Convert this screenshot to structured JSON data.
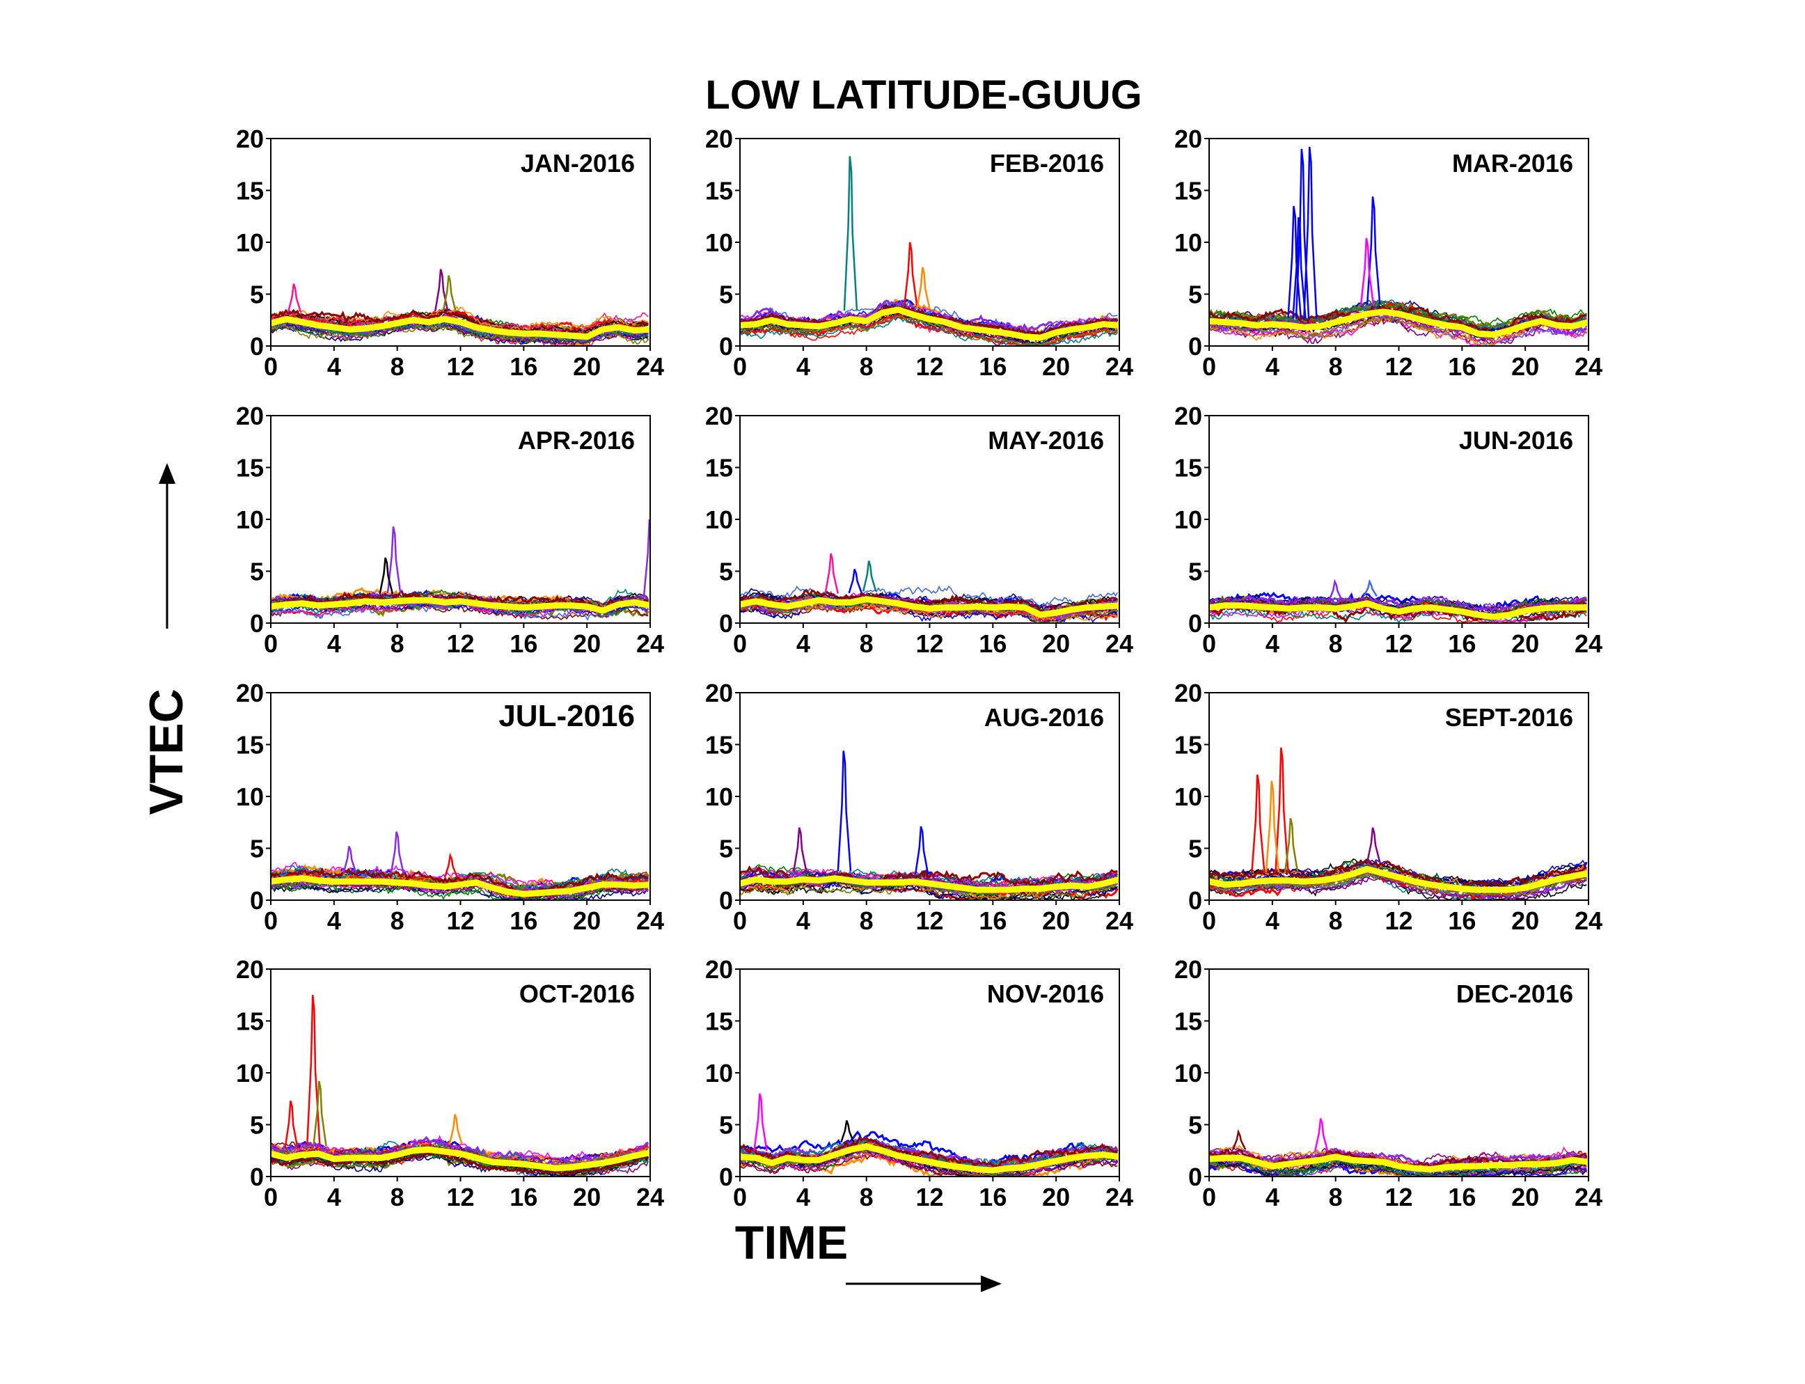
{
  "chart_data": {
    "type": "line",
    "title": "LOW LATITUDE-GUUG",
    "xlabel": "TIME",
    "ylabel": "VTEC",
    "xlim": [
      0,
      24
    ],
    "ylim": [
      0,
      20
    ],
    "xticks": [
      0,
      4,
      8,
      12,
      16,
      20,
      24
    ],
    "yticks": [
      0,
      5,
      10,
      15,
      20
    ],
    "grid": false,
    "legend": "none",
    "layout": "4 rows x 3 columns",
    "mean_line_color": "#FFFF00",
    "trace_colors": [
      "#0000FF",
      "#FF0000",
      "#000000",
      "#00008B",
      "#FF1493",
      "#FF8C00",
      "#8A2BE2",
      "#008000",
      "#008080",
      "#800080",
      "#808000",
      "#8B0000",
      "#FF00FF",
      "#4169E1"
    ],
    "mean_x_hours": [
      0,
      1,
      2,
      3,
      4,
      5,
      6,
      7,
      8,
      9,
      10,
      11,
      12,
      13,
      14,
      15,
      16,
      17,
      18,
      19,
      20,
      21,
      22,
      23,
      24
    ],
    "panels": [
      {
        "label": "JAN-2016",
        "mean": [
          2.2,
          2.6,
          2.3,
          2.0,
          1.8,
          1.6,
          1.7,
          1.9,
          2.2,
          2.5,
          2.3,
          2.6,
          2.3,
          1.8,
          1.5,
          1.3,
          1.2,
          1.2,
          1.1,
          1.0,
          0.9,
          1.6,
          1.8,
          1.5,
          1.6
        ],
        "spikes": [
          {
            "x": 10.8,
            "y": 7.4,
            "color": "#800080"
          },
          {
            "x": 11.3,
            "y": 6.8,
            "color": "#808000"
          },
          {
            "x": 1.5,
            "y": 6.0,
            "color": "#FF1493"
          }
        ]
      },
      {
        "label": "FEB-2016",
        "mean": [
          2.0,
          2.1,
          2.5,
          2.1,
          2.0,
          1.9,
          2.2,
          2.6,
          2.4,
          3.2,
          3.5,
          3.0,
          2.6,
          2.3,
          1.8,
          1.6,
          1.4,
          1.2,
          0.9,
          0.8,
          1.3,
          1.6,
          1.8,
          2.1,
          2.0
        ],
        "spikes": [
          {
            "x": 7.0,
            "y": 18.3,
            "color": "#008080"
          },
          {
            "x": 10.8,
            "y": 10.0,
            "color": "#FF0000"
          },
          {
            "x": 11.6,
            "y": 7.6,
            "color": "#FF8C00"
          }
        ]
      },
      {
        "label": "MAR-2016",
        "mean": [
          2.4,
          2.3,
          2.2,
          2.0,
          2.1,
          2.0,
          1.8,
          1.9,
          2.3,
          2.7,
          3.1,
          3.3,
          3.1,
          2.7,
          2.3,
          2.0,
          1.8,
          1.2,
          1.1,
          1.5,
          2.0,
          2.4,
          2.0,
          1.9,
          2.3
        ],
        "spikes": [
          {
            "x": 5.4,
            "y": 13.5,
            "color": "#0000FF"
          },
          {
            "x": 5.7,
            "y": 12.4,
            "color": "#0000FF"
          },
          {
            "x": 5.9,
            "y": 19.0,
            "color": "#0000FF"
          },
          {
            "x": 6.4,
            "y": 19.2,
            "color": "#0000FF"
          },
          {
            "x": 10.4,
            "y": 14.4,
            "color": "#0000FF"
          },
          {
            "x": 10.0,
            "y": 10.4,
            "color": "#FF00FF"
          }
        ]
      },
      {
        "label": "APR-2016",
        "mean": [
          1.6,
          1.8,
          1.9,
          1.7,
          1.8,
          1.9,
          2.1,
          2.0,
          2.1,
          2.2,
          2.2,
          2.0,
          2.1,
          1.9,
          1.7,
          1.6,
          1.5,
          1.6,
          1.7,
          1.7,
          1.6,
          1.2,
          1.8,
          2.0,
          1.7
        ],
        "spikes": [
          {
            "x": 7.8,
            "y": 9.3,
            "color": "#8A2BE2"
          },
          {
            "x": 24.0,
            "y": 10.0,
            "color": "#8A2BE2"
          },
          {
            "x": 7.3,
            "y": 6.3,
            "color": "#000000"
          }
        ]
      },
      {
        "label": "MAY-2016",
        "mean": [
          1.8,
          2.1,
          1.8,
          1.6,
          1.9,
          2.2,
          2.0,
          2.0,
          2.3,
          2.1,
          1.9,
          1.6,
          1.4,
          1.5,
          1.5,
          1.6,
          1.5,
          1.6,
          1.5,
          0.8,
          1.0,
          1.3,
          1.5,
          1.6,
          1.7
        ],
        "spikes": [
          {
            "x": 5.8,
            "y": 6.7,
            "color": "#FF1493"
          },
          {
            "x": 7.3,
            "y": 5.2,
            "color": "#0000FF"
          },
          {
            "x": 8.2,
            "y": 6.0,
            "color": "#008080"
          }
        ]
      },
      {
        "label": "JUN-2016",
        "mean": [
          1.5,
          1.7,
          1.7,
          1.6,
          1.5,
          1.4,
          1.5,
          1.5,
          1.4,
          1.6,
          1.9,
          1.4,
          1.1,
          1.4,
          1.5,
          1.3,
          1.1,
          0.8,
          0.6,
          0.8,
          1.2,
          1.4,
          1.5,
          1.5,
          1.5
        ],
        "spikes": [
          {
            "x": 8.0,
            "y": 4.0,
            "color": "#8A2BE2"
          },
          {
            "x": 10.2,
            "y": 4.0,
            "color": "#4169E1"
          }
        ]
      },
      {
        "label": "JUL-2016",
        "mean": [
          1.8,
          2.0,
          2.1,
          1.9,
          1.8,
          1.8,
          1.8,
          1.8,
          1.7,
          1.6,
          1.4,
          1.3,
          1.5,
          1.7,
          1.2,
          0.8,
          0.6,
          0.7,
          0.8,
          0.9,
          1.2,
          1.5,
          1.5,
          1.4,
          1.5
        ],
        "spikes": [
          {
            "x": 8.0,
            "y": 6.6,
            "color": "#8A2BE2"
          },
          {
            "x": 5.0,
            "y": 5.2,
            "color": "#8A2BE2"
          },
          {
            "x": 11.4,
            "y": 4.3,
            "color": "#FF0000"
          }
        ]
      },
      {
        "label": "AUG-2016",
        "mean": [
          1.6,
          2.0,
          1.8,
          1.8,
          2.0,
          1.9,
          2.1,
          1.9,
          1.7,
          1.7,
          1.7,
          1.8,
          1.6,
          1.4,
          1.2,
          1.0,
          1.0,
          1.0,
          1.1,
          1.1,
          1.3,
          1.4,
          1.3,
          1.6,
          2.0
        ],
        "spikes": [
          {
            "x": 6.6,
            "y": 14.4,
            "color": "#0000FF"
          },
          {
            "x": 3.8,
            "y": 7.0,
            "color": "#800080"
          },
          {
            "x": 11.5,
            "y": 7.1,
            "color": "#0000FF"
          }
        ]
      },
      {
        "label": "SEPT-2016",
        "mean": [
          1.8,
          1.5,
          1.6,
          1.8,
          1.9,
          1.9,
          1.8,
          1.9,
          2.1,
          2.5,
          3.0,
          2.6,
          2.2,
          1.8,
          1.5,
          1.3,
          1.1,
          1.0,
          1.0,
          1.0,
          1.2,
          1.6,
          2.0,
          2.3,
          2.6
        ],
        "spikes": [
          {
            "x": 4.6,
            "y": 14.7,
            "color": "#FF0000"
          },
          {
            "x": 3.1,
            "y": 12.1,
            "color": "#FF0000"
          },
          {
            "x": 4.0,
            "y": 11.5,
            "color": "#FF8C00"
          },
          {
            "x": 5.2,
            "y": 7.9,
            "color": "#808000"
          },
          {
            "x": 10.4,
            "y": 7.0,
            "color": "#800080"
          }
        ]
      },
      {
        "label": "OCT-2016",
        "mean": [
          2.2,
          1.8,
          2.1,
          2.2,
          1.7,
          1.8,
          1.8,
          1.8,
          2.1,
          2.5,
          2.6,
          2.4,
          2.2,
          1.8,
          1.4,
          1.3,
          1.2,
          1.0,
          0.8,
          0.9,
          1.1,
          1.3,
          1.6,
          2.0,
          2.3
        ],
        "spikes": [
          {
            "x": 2.7,
            "y": 17.5,
            "color": "#FF0000"
          },
          {
            "x": 3.1,
            "y": 9.2,
            "color": "#808000"
          },
          {
            "x": 1.3,
            "y": 7.3,
            "color": "#FF0000"
          },
          {
            "x": 11.7,
            "y": 6.0,
            "color": "#FF8C00"
          }
        ]
      },
      {
        "label": "NOV-2016",
        "mean": [
          1.9,
          1.8,
          1.3,
          1.8,
          1.6,
          1.6,
          2.1,
          2.6,
          2.9,
          2.5,
          2.0,
          1.7,
          1.4,
          1.1,
          0.9,
          0.7,
          0.6,
          0.8,
          0.9,
          1.2,
          1.5,
          1.8,
          2.0,
          2.1,
          1.9
        ],
        "spikes": [
          {
            "x": 1.3,
            "y": 8.0,
            "color": "#FF00FF"
          },
          {
            "x": 6.8,
            "y": 5.4,
            "color": "#000000"
          }
        ]
      },
      {
        "label": "DEC-2016",
        "mean": [
          1.7,
          1.8,
          1.8,
          1.4,
          1.0,
          1.2,
          1.4,
          1.6,
          1.9,
          1.6,
          1.5,
          1.4,
          1.0,
          0.8,
          0.7,
          0.9,
          1.0,
          1.0,
          1.1,
          1.1,
          1.2,
          1.2,
          1.3,
          1.6,
          1.4
        ],
        "spikes": [
          {
            "x": 7.1,
            "y": 5.6,
            "color": "#FF00FF"
          },
          {
            "x": 1.9,
            "y": 4.3,
            "color": "#8B0000"
          }
        ]
      }
    ]
  }
}
